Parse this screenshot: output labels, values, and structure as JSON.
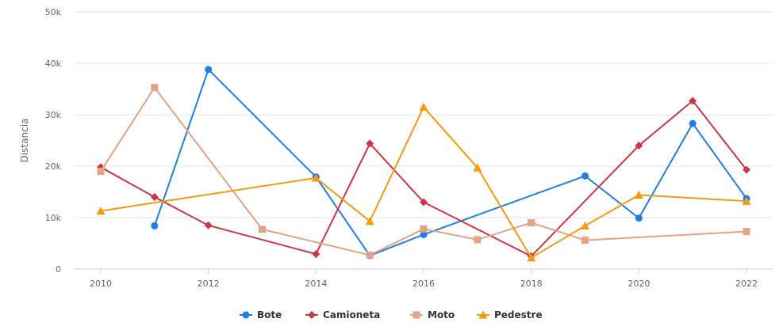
{
  "chart_data": {
    "type": "line",
    "title": "",
    "xlabel": "",
    "ylabel": "Distancia",
    "xlim": [
      2010,
      2022
    ],
    "ylim": [
      0,
      50000
    ],
    "x_ticks": [
      2010,
      2012,
      2014,
      2016,
      2018,
      2020,
      2022
    ],
    "x_tick_labels": [
      "2010",
      "2012",
      "2014",
      "2016",
      "2018",
      "2020",
      "2022"
    ],
    "y_ticks": [
      0,
      10000,
      20000,
      30000,
      40000,
      50000
    ],
    "y_tick_labels": [
      "0",
      "10k",
      "20k",
      "30k",
      "40k",
      "50k"
    ],
    "grid": true,
    "legend_position": "bottom-center",
    "series": [
      {
        "name": "Bote",
        "color": "#1f7fe6",
        "marker": "circle",
        "x": [
          2011,
          2012,
          2014,
          2015,
          2016,
          2019,
          2020,
          2021,
          2022
        ],
        "values": [
          8400,
          38800,
          17900,
          2600,
          6700,
          18100,
          9900,
          28300,
          13700
        ]
      },
      {
        "name": "Camioneta",
        "color": "#d03447",
        "marker": "diamond",
        "x": [
          2010,
          2011,
          2012,
          2014,
          2015,
          2016,
          2018,
          2020,
          2021,
          2022
        ],
        "values": [
          19800,
          14000,
          8500,
          2900,
          24400,
          13000,
          2500,
          24000,
          32700,
          19300
        ]
      },
      {
        "name": "Moto",
        "color": "#e3a384",
        "marker": "square",
        "x": [
          2010,
          2011,
          2013,
          2015,
          2016,
          2017,
          2018,
          2019,
          2022
        ],
        "values": [
          19000,
          35300,
          7700,
          2700,
          7800,
          5700,
          9000,
          5600,
          7300
        ]
      },
      {
        "name": "Pedestre",
        "color": "#f59b10",
        "marker": "triangle",
        "x": [
          2010,
          2014,
          2015,
          2016,
          2017,
          2018,
          2019,
          2020,
          2022
        ],
        "values": [
          11300,
          17700,
          9300,
          31500,
          19700,
          2200,
          8400,
          14400,
          13200
        ]
      }
    ]
  }
}
